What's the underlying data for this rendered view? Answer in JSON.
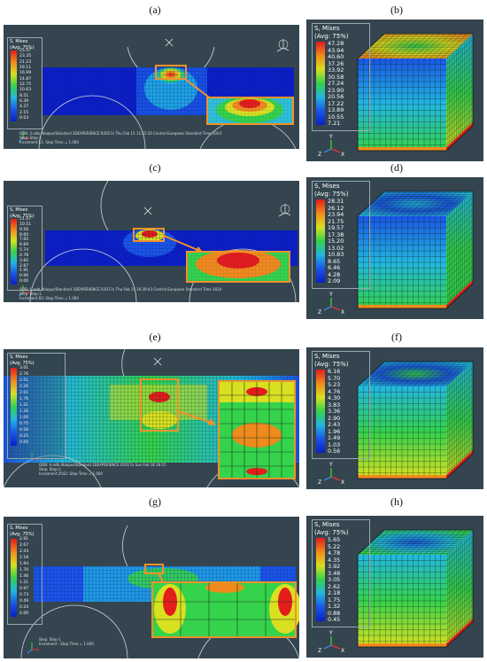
{
  "panel_labels": {
    "a": "(a)",
    "b": "(b)",
    "c": "(c)",
    "d": "(d)",
    "e": "(e)",
    "f": "(f)",
    "g": "(g)",
    "h": "(h)"
  },
  "legend_title": "S, Mises",
  "legend_subtitle": "(Avg: 75%)",
  "legends": {
    "a": [
      "25.47",
      "23.35",
      "21.23",
      "19.11",
      "16.99",
      "14.87",
      "12.75",
      "10.63",
      "8.51",
      "6.39",
      "4.27",
      "2.15",
      "0.03"
    ],
    "b": [
      "47.28",
      "43.94",
      "40.60",
      "37.26",
      "33.92",
      "30.58",
      "27.24",
      "23.90",
      "20.56",
      "17.22",
      "13.89",
      "10.55",
      "7.21"
    ],
    "c": [
      "11.47",
      "10.51",
      "9.56",
      "8.60",
      "7.65",
      "6.69",
      "5.74",
      "4.78",
      "3.82",
      "2.87",
      "1.91",
      "0.96",
      "0.00"
    ],
    "d": [
      "28.31",
      "26.12",
      "23.94",
      "21.75",
      "19.57",
      "17.38",
      "15.20",
      "13.02",
      "10.83",
      "8.65",
      "6.46",
      "4.28",
      "2.09"
    ],
    "e": [
      "3.01",
      "2.76",
      "2.51",
      "2.26",
      "2.01",
      "1.76",
      "1.51",
      "1.26",
      "1.00",
      "0.75",
      "0.50",
      "0.25",
      "0.00"
    ],
    "f": [
      "6.16",
      "5.70",
      "5.23",
      "4.76",
      "4.30",
      "3.83",
      "3.36",
      "2.90",
      "2.43",
      "1.96",
      "1.49",
      "1.03",
      "0.56"
    ],
    "g": [
      "2.91",
      "2.67",
      "2.43",
      "2.18",
      "1.94",
      "1.70",
      "1.46",
      "1.21",
      "0.97",
      "0.73",
      "0.49",
      "0.24",
      "0.00"
    ],
    "h": [
      "5.65",
      "5.22",
      "4.78",
      "4.35",
      "3.92",
      "3.48",
      "3.05",
      "2.62",
      "2.18",
      "1.75",
      "1.32",
      "0.88",
      "0.45"
    ]
  },
  "footers": {
    "a": [
      "ODB: 2.odb    Abaqus/Standard 3DEXPERIENCE R2017x    Thu Feb 15 11:22:35 Central European Standard Time 2024",
      "Step: Step-1",
      "Increment    51: Step Time =    1.000"
    ],
    "c": [
      "ODB: C.odb    Abaqus/Standard 3DEXPERIENCE R2017x    Thu Feb 15 16:39:43 Central European Standard Time 2024",
      "Step: Step-1",
      "Increment    60: Step Time =    1.000"
    ],
    "e": [
      "ODB: A.odb    Abaqus/Standard 3DEXPERIENCE R2017x    Sun Feb 18 18:25",
      "Step: Step-1",
      "Increment   2542: Step Time =    1.000"
    ],
    "g": [
      "",
      "Step: Step-1",
      "Increment         : Step Time =    1.000"
    ]
  },
  "triad_labels": {
    "x": "X",
    "y": "Y",
    "z": "Z"
  },
  "colors": {
    "background": "#34454f",
    "deep_blue": "#0b1fc7",
    "blue": "#1a55e6",
    "cyan": "#22b6e0",
    "green": "#35d24c",
    "yellow": "#d8e020",
    "orange": "#f08a1c",
    "red": "#e31c1c",
    "highlight_box": "#f0922b"
  }
}
